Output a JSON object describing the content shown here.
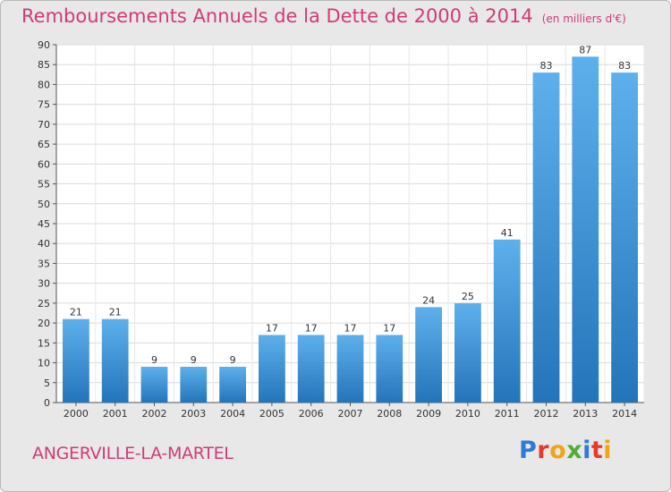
{
  "title": "Remboursements Annuels de la Dette de 2000 à 2014",
  "unit": "(en milliers d'€)",
  "commune": "ANGERVILLE-LA-MARTEL",
  "logo": {
    "letters": [
      "P",
      "r",
      "o",
      "x",
      "i",
      "t",
      "i"
    ],
    "colors": [
      "#2f7ad8",
      "#e63c2e",
      "#f2a413",
      "#4fae33",
      "#2f7ad8",
      "#e63c2e",
      "#f2a413"
    ]
  },
  "chart_data": {
    "type": "bar",
    "title": "Remboursements Annuels de la Dette de 2000 à 2014",
    "categories": [
      "2000",
      "2001",
      "2002",
      "2003",
      "2004",
      "2005",
      "2006",
      "2007",
      "2008",
      "2009",
      "2010",
      "2011",
      "2012",
      "2013",
      "2014"
    ],
    "values": [
      21,
      21,
      9,
      9,
      9,
      17,
      17,
      17,
      17,
      24,
      25,
      41,
      83,
      87,
      83
    ],
    "ylim": [
      0,
      90
    ],
    "yticks": [
      0,
      5,
      10,
      15,
      20,
      25,
      30,
      35,
      40,
      45,
      50,
      55,
      60,
      65,
      70,
      75,
      80,
      85,
      90
    ],
    "grid": true,
    "bar_color": "#4a9fe0"
  }
}
